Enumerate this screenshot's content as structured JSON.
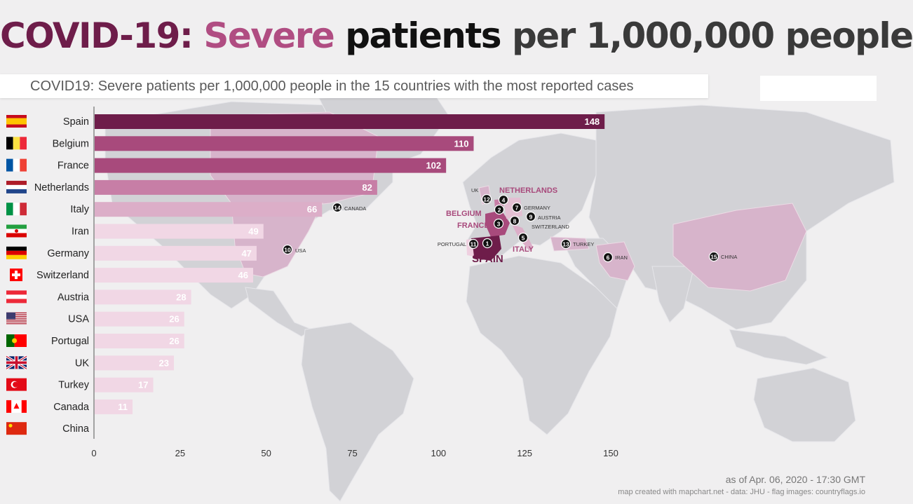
{
  "title": {
    "part1": "COVID-19:",
    "part2": "Severe",
    "part3": "patients",
    "part4": "per 1,000,000 people"
  },
  "subtitle": "COVID19: Severe patients per 1,000,000 people in the 15 countries with the most reported cases",
  "footer": {
    "date": "as of Apr. 06, 2020 - 17:30 GMT",
    "credits": "map created with mapchart.net - data: JHU - flag images: countryflags.io"
  },
  "colors": {
    "rank1": "#6e1d4a",
    "rank2_3": "#a84a7c",
    "rank4": "#c77ea6",
    "rank5": "#dcaec8",
    "rest": "#f1d7e5",
    "map_land": "#d2d2d6",
    "map_highlight": "#d7b4cb"
  },
  "chart_data": {
    "type": "bar",
    "orientation": "horizontal",
    "categories": [
      "Spain",
      "Belgium",
      "France",
      "Netherlands",
      "Italy",
      "Iran",
      "Germany",
      "Switzerland",
      "Austria",
      "USA",
      "Portugal",
      "UK",
      "Turkey",
      "Canada",
      "China"
    ],
    "values": [
      148,
      110,
      102,
      82,
      66,
      49,
      47,
      46,
      28,
      26,
      26,
      23,
      17,
      11,
      0
    ],
    "data_labels": [
      "148",
      "110",
      "102",
      "82",
      "66",
      "49",
      "47",
      "46",
      "28",
      "26",
      "26",
      "23",
      "17",
      "11",
      ""
    ],
    "flags": [
      "spain-flag",
      "belgium-flag",
      "france-flag",
      "netherlands-flag",
      "italy-flag",
      "iran-flag",
      "germany-flag",
      "switzerland-flag",
      "austria-flag",
      "usa-flag",
      "portugal-flag",
      "uk-flag",
      "turkey-flag",
      "canada-flag",
      "china-flag"
    ],
    "xticks": [
      "0",
      "25",
      "50",
      "75",
      "100",
      "125",
      "150"
    ],
    "xlim": [
      0,
      150
    ],
    "grid": false,
    "legend": "none"
  },
  "map_labels": [
    {
      "rank": "1",
      "name": "SPAIN"
    },
    {
      "rank": "2",
      "name": "BELGIUM"
    },
    {
      "rank": "3",
      "name": "FRANCE"
    },
    {
      "rank": "4",
      "name": "NETHERLANDS"
    },
    {
      "rank": "5",
      "name": "ITALY"
    },
    {
      "rank": "6",
      "name": "IRAN"
    },
    {
      "rank": "7",
      "name": "GERMANY"
    },
    {
      "rank": "8",
      "name": "SWITZERLAND"
    },
    {
      "rank": "9",
      "name": "AUSTRIA"
    },
    {
      "rank": "10",
      "name": "USA"
    },
    {
      "rank": "11",
      "name": "PORTUGAL"
    },
    {
      "rank": "12",
      "name": "UK"
    },
    {
      "rank": "13",
      "name": "TURKEY"
    },
    {
      "rank": "14",
      "name": "CANADA"
    },
    {
      "rank": "15",
      "name": "CHINA"
    }
  ]
}
